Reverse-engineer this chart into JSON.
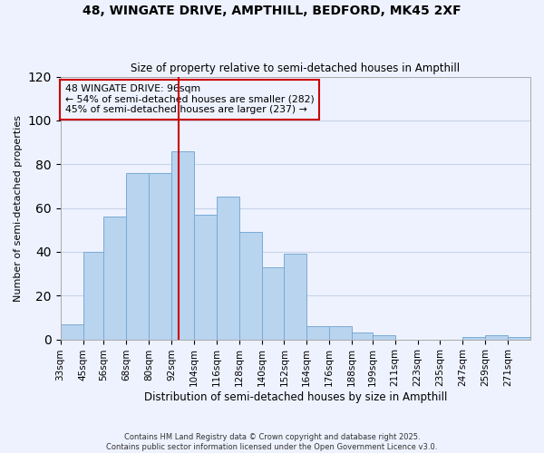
{
  "title": "48, WINGATE DRIVE, AMPTHILL, BEDFORD, MK45 2XF",
  "subtitle": "Size of property relative to semi-detached houses in Ampthill",
  "xlabel": "Distribution of semi-detached houses by size in Ampthill",
  "ylabel": "Number of semi-detached properties",
  "bar_color": "#b8d4ee",
  "bar_edge_color": "#7aaad4",
  "bin_labels": [
    "33sqm",
    "45sqm",
    "56sqm",
    "68sqm",
    "80sqm",
    "92sqm",
    "104sqm",
    "116sqm",
    "128sqm",
    "140sqm",
    "152sqm",
    "164sqm",
    "176sqm",
    "188sqm",
    "199sqm",
    "211sqm",
    "223sqm",
    "235sqm",
    "247sqm",
    "259sqm",
    "271sqm"
  ],
  "bin_edges": [
    33,
    45,
    56,
    68,
    80,
    92,
    104,
    116,
    128,
    140,
    152,
    164,
    176,
    188,
    199,
    211,
    223,
    235,
    247,
    259,
    271
  ],
  "bar_heights": [
    7,
    40,
    56,
    76,
    76,
    86,
    57,
    65,
    49,
    33,
    39,
    6,
    6,
    3,
    2,
    0,
    0,
    0,
    1,
    2,
    1
  ],
  "property_value": 96,
  "vline_color": "#cc0000",
  "annotation_lines": [
    "48 WINGATE DRIVE: 96sqm",
    "← 54% of semi-detached houses are smaller (282)",
    "45% of semi-detached houses are larger (237) →"
  ],
  "annotation_box_color": "#cc0000",
  "ylim": [
    0,
    120
  ],
  "yticks": [
    0,
    20,
    40,
    60,
    80,
    100,
    120
  ],
  "grid_color": "#c8d4e8",
  "background_color": "#eef2ff",
  "footer_line1": "Contains HM Land Registry data © Crown copyright and database right 2025.",
  "footer_line2": "Contains public sector information licensed under the Open Government Licence v3.0."
}
